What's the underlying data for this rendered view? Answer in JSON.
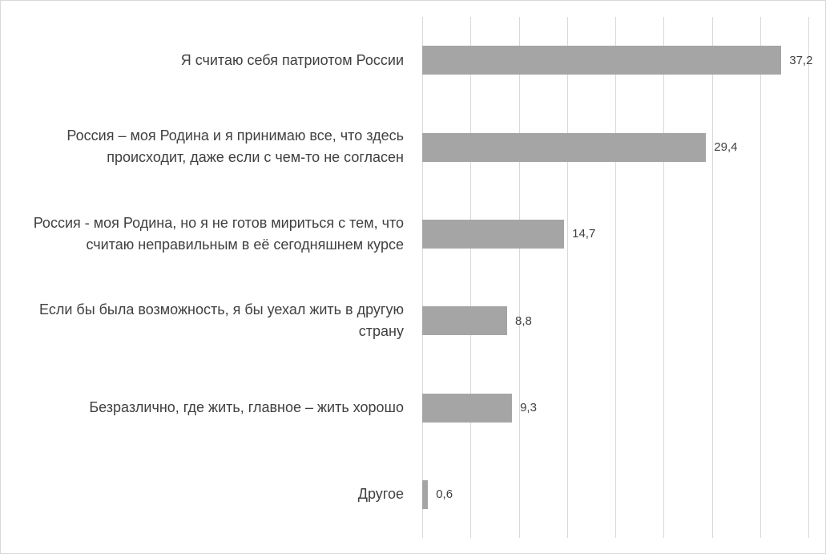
{
  "chart_data": {
    "type": "bar",
    "orientation": "horizontal",
    "categories": [
      "Я считаю себя патриотом России",
      "Россия – моя Родина и я принимаю все, что здесь происходит, даже если с чем-то не согласен",
      "Россия - моя Родина, но я не готов мириться с тем, что считаю неправильным в её сегодняшнем курсе",
      "Если бы была возможность, я бы уехал жить в другую страну",
      "Безразлично, где жить, главное – жить хорошо",
      "Другое"
    ],
    "values": [
      37.2,
      29.4,
      14.7,
      8.8,
      9.3,
      0.6
    ],
    "value_labels": [
      "37,2",
      "29,4",
      "14,7",
      "8,8",
      "9,3",
      "0,6"
    ],
    "color": "#a5a5a5",
    "xlim": [
      0,
      40
    ],
    "xticks": [
      0,
      5,
      10,
      15,
      20,
      25,
      30,
      35,
      40
    ],
    "grid": true
  }
}
